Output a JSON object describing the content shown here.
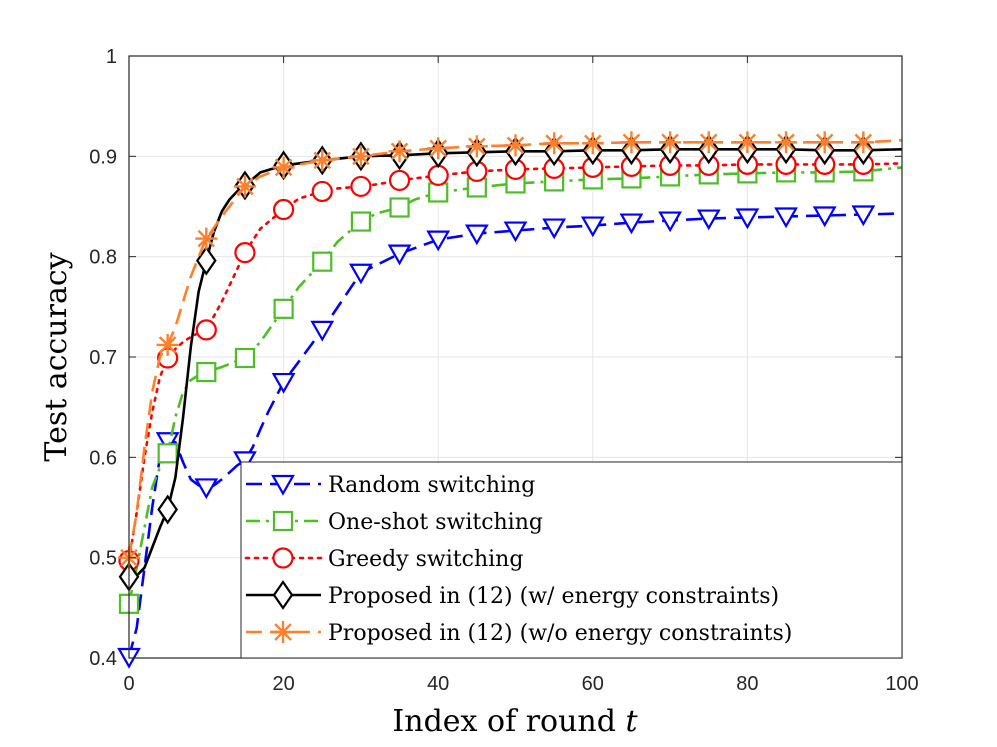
{
  "chart_data": {
    "type": "line",
    "xlabel": "Index of round ",
    "xlabel_var": "t",
    "ylabel": "Test accuracy",
    "xlim": [
      0,
      100
    ],
    "ylim": [
      0.4,
      1
    ],
    "xticks": [
      0,
      20,
      40,
      60,
      80,
      100
    ],
    "yticks": [
      0.4,
      0.5,
      0.6,
      0.7,
      0.8,
      0.9,
      1
    ],
    "ytick_labels": [
      "0.4",
      "0.5",
      "0.6",
      "0.7",
      "0.8",
      "0.9",
      "1"
    ],
    "grid": true,
    "legend_position": "bottom-right",
    "series": [
      {
        "name": "Random switching",
        "color": "#0000ff",
        "line_style": "dashed",
        "marker": "triangle-down",
        "x": [
          0,
          1,
          2,
          3,
          4,
          5,
          6,
          7,
          8,
          9,
          10,
          11,
          12,
          13,
          14,
          15,
          16,
          17,
          18,
          19,
          20,
          25,
          30,
          35,
          40,
          45,
          50,
          55,
          60,
          65,
          70,
          75,
          80,
          85,
          90,
          95,
          100
        ],
        "y": [
          0.401,
          0.43,
          0.49,
          0.55,
          0.6,
          0.616,
          0.615,
          0.595,
          0.578,
          0.572,
          0.57,
          0.572,
          0.578,
          0.585,
          0.592,
          0.597,
          0.61,
          0.628,
          0.645,
          0.66,
          0.675,
          0.727,
          0.784,
          0.803,
          0.817,
          0.823,
          0.826,
          0.829,
          0.831,
          0.834,
          0.836,
          0.838,
          0.839,
          0.84,
          0.841,
          0.842,
          0.843
        ],
        "marker_x": [
          0,
          5,
          10,
          15,
          20,
          25,
          30,
          35,
          40,
          45,
          50,
          55,
          60,
          65,
          70,
          75,
          80,
          85,
          90,
          95
        ]
      },
      {
        "name": "One-shot switching",
        "color": "#4dbe25",
        "line_style": "dash-dot",
        "marker": "square",
        "x": [
          0,
          1,
          2,
          3,
          4,
          5,
          6,
          7,
          8,
          9,
          10,
          12,
          15,
          17,
          20,
          22,
          25,
          27,
          30,
          32,
          35,
          37,
          40,
          45,
          50,
          55,
          60,
          65,
          70,
          75,
          80,
          85,
          90,
          95,
          100
        ],
        "y": [
          0.454,
          0.49,
          0.53,
          0.57,
          0.59,
          0.604,
          0.64,
          0.665,
          0.677,
          0.682,
          0.685,
          0.69,
          0.699,
          0.715,
          0.748,
          0.77,
          0.795,
          0.815,
          0.835,
          0.843,
          0.849,
          0.857,
          0.864,
          0.869,
          0.873,
          0.875,
          0.877,
          0.878,
          0.88,
          0.882,
          0.883,
          0.884,
          0.884,
          0.885,
          0.889
        ],
        "marker_x": [
          0,
          5,
          10,
          15,
          20,
          25,
          30,
          35,
          40,
          45,
          50,
          55,
          60,
          65,
          70,
          75,
          80,
          85,
          90,
          95
        ]
      },
      {
        "name": "Greedy switching",
        "color": "#ff0000",
        "line_style": "dotted",
        "marker": "circle",
        "x": [
          0,
          1,
          2,
          3,
          4,
          5,
          6,
          7,
          8,
          9,
          10,
          12,
          15,
          17,
          20,
          22,
          25,
          27,
          30,
          32,
          35,
          40,
          45,
          50,
          55,
          60,
          65,
          70,
          75,
          80,
          85,
          90,
          95,
          100
        ],
        "y": [
          0.497,
          0.545,
          0.6,
          0.645,
          0.68,
          0.699,
          0.708,
          0.715,
          0.72,
          0.724,
          0.727,
          0.755,
          0.804,
          0.828,
          0.847,
          0.858,
          0.865,
          0.868,
          0.87,
          0.872,
          0.876,
          0.881,
          0.885,
          0.887,
          0.888,
          0.889,
          0.89,
          0.891,
          0.891,
          0.892,
          0.892,
          0.892,
          0.892,
          0.893
        ],
        "marker_x": [
          0,
          5,
          10,
          15,
          20,
          25,
          30,
          35,
          40,
          45,
          50,
          55,
          60,
          65,
          70,
          75,
          80,
          85,
          90,
          95
        ]
      },
      {
        "name": "Proposed in (12) (w/ energy constraints)",
        "color": "#000000",
        "line_style": "solid",
        "marker": "diamond",
        "x": [
          0,
          1,
          2,
          3,
          4,
          5,
          6,
          7,
          8,
          9,
          10,
          11,
          12,
          13,
          14,
          15,
          17,
          20,
          25,
          30,
          35,
          40,
          45,
          50,
          55,
          60,
          65,
          70,
          75,
          80,
          85,
          90,
          95,
          100
        ],
        "y": [
          0.481,
          0.482,
          0.49,
          0.51,
          0.53,
          0.548,
          0.58,
          0.64,
          0.71,
          0.765,
          0.796,
          0.825,
          0.845,
          0.857,
          0.865,
          0.871,
          0.884,
          0.891,
          0.896,
          0.9,
          0.901,
          0.903,
          0.904,
          0.905,
          0.905,
          0.906,
          0.906,
          0.907,
          0.907,
          0.907,
          0.907,
          0.906,
          0.906,
          0.907
        ],
        "marker_x": [
          0,
          5,
          10,
          15,
          20,
          25,
          30,
          35,
          40,
          45,
          50,
          55,
          60,
          65,
          70,
          75,
          80,
          85,
          90,
          95
        ]
      },
      {
        "name": "Proposed in (12) (w/o energy constraints)",
        "color": "#ff7f2a",
        "line_style": "dashed",
        "marker": "asterisk",
        "x": [
          0,
          1,
          2,
          3,
          4,
          5,
          6,
          7,
          8,
          9,
          10,
          12,
          15,
          17,
          20,
          25,
          30,
          35,
          40,
          45,
          50,
          55,
          60,
          65,
          70,
          75,
          80,
          85,
          90,
          95,
          100
        ],
        "y": [
          0.5,
          0.545,
          0.61,
          0.665,
          0.7,
          0.712,
          0.73,
          0.755,
          0.78,
          0.8,
          0.818,
          0.84,
          0.87,
          0.88,
          0.889,
          0.896,
          0.9,
          0.905,
          0.908,
          0.91,
          0.911,
          0.913,
          0.913,
          0.914,
          0.914,
          0.914,
          0.914,
          0.914,
          0.914,
          0.914,
          0.916
        ],
        "marker_x": [
          0,
          5,
          10,
          15,
          20,
          25,
          30,
          35,
          40,
          45,
          50,
          55,
          60,
          65,
          70,
          75,
          80,
          85,
          90,
          95
        ]
      }
    ]
  }
}
